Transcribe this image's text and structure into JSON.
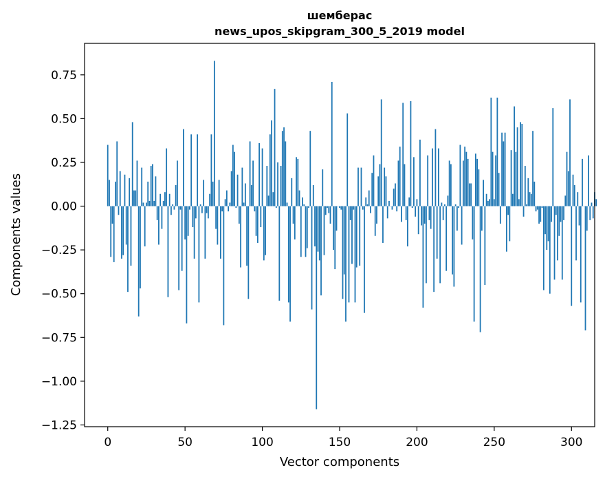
{
  "chart_data": {
    "type": "bar",
    "title": "шемберас",
    "subtitle": "news_upos_skipgram_300_5_2019 model",
    "xlabel": "Vector components",
    "ylabel": "Components values",
    "xlim": [
      -15,
      315
    ],
    "ylim": [
      -1.26,
      0.93
    ],
    "x_ticks": [
      0,
      50,
      100,
      150,
      200,
      250,
      300
    ],
    "y_ticks": [
      0.75,
      0.5,
      0.25,
      0.0,
      -0.25,
      -0.5,
      -0.75,
      -1.0,
      -1.25
    ],
    "y_tick_labels": [
      "0.75",
      "0.50",
      "0.25",
      "0.00",
      "−0.25",
      "−0.50",
      "−0.75",
      "−1.00",
      "−1.25"
    ],
    "x_tick_labels": [
      "0",
      "50",
      "100",
      "150",
      "200",
      "250",
      "300"
    ],
    "grid": false,
    "bar_color": "#1f77b4",
    "values": [
      0.35,
      0.15,
      -0.29,
      -0.1,
      -0.32,
      0.14,
      0.37,
      -0.05,
      0.2,
      -0.3,
      -0.28,
      0.18,
      -0.22,
      -0.49,
      0.16,
      -0.34,
      0.48,
      0.09,
      0.09,
      0.26,
      -0.63,
      -0.47,
      0.22,
      0.02,
      -0.23,
      0.02,
      0.14,
      0.03,
      0.23,
      0.24,
      0.03,
      0.17,
      -0.08,
      -0.22,
      0.07,
      -0.13,
      0.03,
      0.08,
      0.33,
      -0.52,
      0.07,
      -0.05,
      0.01,
      -0.02,
      0.12,
      0.26,
      -0.48,
      -0.02,
      -0.37,
      0.44,
      -0.19,
      -0.67,
      -0.17,
      -0.02,
      0.41,
      -0.12,
      -0.3,
      -0.07,
      0.41,
      -0.55,
      0.01,
      -0.04,
      0.15,
      -0.3,
      -0.04,
      -0.07,
      0.07,
      0.41,
      0.14,
      0.83,
      -0.13,
      -0.22,
      0.15,
      -0.3,
      -0.03,
      -0.68,
      0.04,
      0.09,
      -0.03,
      0.02,
      0.2,
      0.35,
      0.31,
      -0.01,
      0.18,
      -0.1,
      -0.35,
      0.22,
      0.02,
      0.13,
      -0.34,
      -0.53,
      0.37,
      0.12,
      0.26,
      -0.03,
      -0.17,
      -0.21,
      0.36,
      -0.12,
      0.33,
      -0.31,
      -0.28,
      0.23,
      0.06,
      0.41,
      0.49,
      0.08,
      0.67,
      -0.01,
      0.25,
      -0.54,
      0.23,
      0.43,
      0.45,
      0.37,
      0.02,
      -0.55,
      -0.66,
      0.16,
      -0.1,
      -0.19,
      0.28,
      0.27,
      0.09,
      -0.29,
      0.05,
      0.01,
      -0.29,
      -0.24,
      -0.01,
      0.43,
      -0.59,
      0.12,
      -0.23,
      -1.16,
      -0.26,
      -0.31,
      -0.51,
      0.21,
      -0.28,
      -0.05,
      -0.01,
      -0.04,
      -0.1,
      0.71,
      -0.25,
      -0.36,
      -0.14,
      0.0,
      -0.01,
      -0.02,
      -0.53,
      -0.39,
      -0.66,
      0.53,
      -0.55,
      -0.08,
      -0.33,
      -0.02,
      -0.55,
      -0.35,
      0.22,
      -0.34,
      0.22,
      -0.02,
      -0.61,
      0.05,
      0.01,
      0.09,
      -0.04,
      0.19,
      0.29,
      -0.17,
      -0.1,
      0.17,
      0.24,
      0.61,
      -0.21,
      0.22,
      0.17,
      -0.07,
      0.03,
      0.0,
      -0.02,
      0.1,
      0.13,
      -0.03,
      0.26,
      0.34,
      -0.09,
      0.59,
      0.24,
      -0.08,
      -0.23,
      0.05,
      0.6,
      -0.01,
      0.28,
      -0.06,
      0.04,
      -0.16,
      0.38,
      -0.11,
      -0.58,
      -0.1,
      -0.44,
      0.29,
      -0.08,
      -0.13,
      0.33,
      -0.49,
      0.44,
      -0.3,
      0.33,
      -0.44,
      0.02,
      -0.08,
      0.01,
      -0.37,
      0.06,
      0.26,
      0.24,
      -0.39,
      -0.46,
      0.01,
      -0.14,
      -0.01,
      0.35,
      -0.22,
      0.26,
      0.34,
      0.31,
      0.27,
      0.13,
      0.13,
      -0.19,
      -0.66,
      0.3,
      0.27,
      0.21,
      -0.72,
      -0.14,
      0.15,
      -0.45,
      0.07,
      0.03,
      0.04,
      0.62,
      0.31,
      0.04,
      0.29,
      0.62,
      0.19,
      -0.1,
      0.42,
      0.37,
      0.42,
      -0.26,
      -0.05,
      -0.2,
      0.32,
      0.07,
      0.57,
      0.31,
      0.45,
      0.04,
      0.48,
      0.47,
      -0.06,
      0.23,
      0.01,
      0.16,
      0.08,
      0.07,
      0.43,
      0.14,
      -0.03,
      -0.02,
      -0.1,
      -0.09,
      -0.01,
      -0.48,
      -0.16,
      -0.25,
      -0.2,
      -0.5,
      -0.09,
      0.56,
      -0.42,
      -0.05,
      -0.31,
      -0.17,
      -0.09,
      -0.42,
      -0.08,
      0.06,
      0.31,
      0.2,
      0.61,
      -0.57,
      0.18,
      0.12,
      -0.31,
      0.08,
      -0.11,
      -0.55,
      0.27,
      0.0,
      -0.71,
      -0.14,
      0.29,
      -0.08,
      0.02,
      -0.07,
      0.08,
      0.04
    ]
  }
}
